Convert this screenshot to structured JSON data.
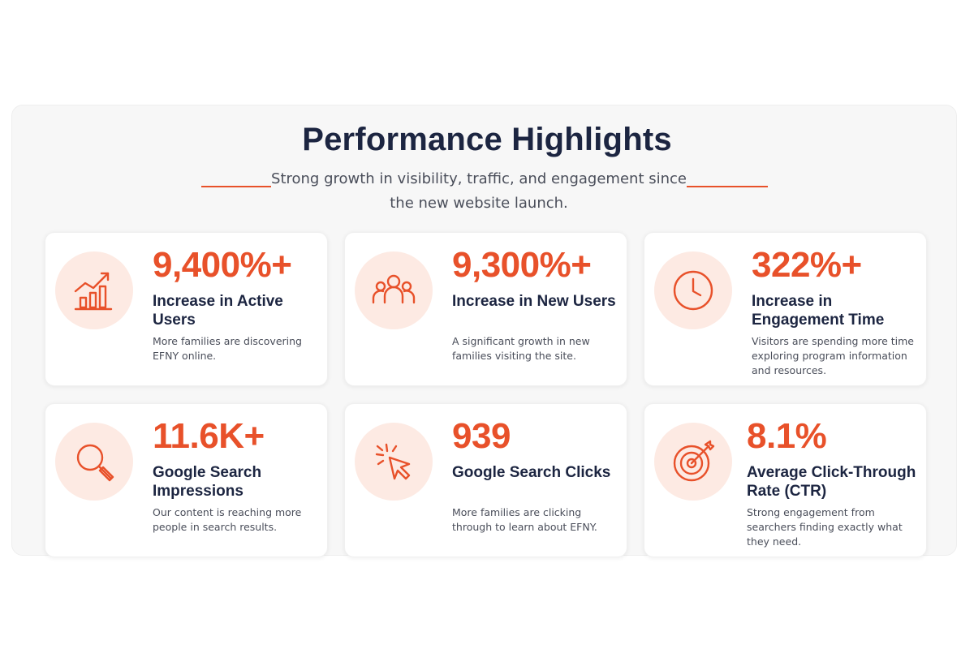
{
  "header": {
    "title": "Performance Highlights",
    "subtitle": "Strong growth in visibility, traffic, and engagement since the new website launch."
  },
  "accent_color": "#e8512a",
  "heading_color": "#1c2541",
  "cards": [
    {
      "icon": "bar-chart-growth-icon",
      "value": "9,400%+",
      "label": "Increase in Active Users",
      "description": "More families are discovering EFNY online."
    },
    {
      "icon": "users-group-icon",
      "value": "9,300%+",
      "label": "Increase in New Users",
      "description": "A significant growth in new families visiting the site."
    },
    {
      "icon": "clock-icon",
      "value": "322%+",
      "label": "Increase in Engagement Time",
      "description": "Visitors are spending more time exploring program information and resources."
    },
    {
      "icon": "search-icon",
      "value": "11.6K+",
      "label": "Google Search Impressions",
      "description": "Our content is reaching more people in search results."
    },
    {
      "icon": "cursor-click-icon",
      "value": "939",
      "label": "Google Search Clicks",
      "description": "More families are clicking through to learn about EFNY."
    },
    {
      "icon": "target-icon",
      "value": "8.1%",
      "label": "Average Click-Through Rate (CTR)",
      "description": "Strong engagement from searchers finding exactly what they need."
    }
  ]
}
